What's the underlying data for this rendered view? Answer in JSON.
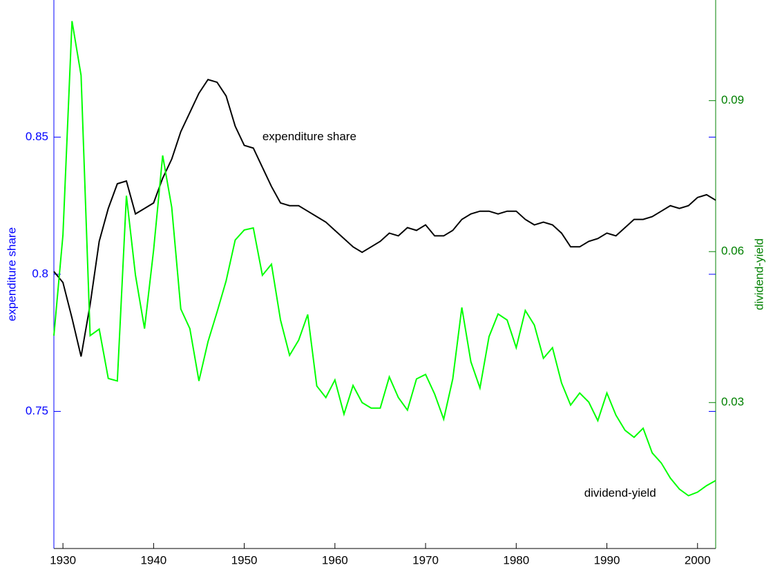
{
  "chart_data": {
    "type": "line",
    "x": [
      1929,
      1930,
      1931,
      1932,
      1933,
      1934,
      1935,
      1936,
      1937,
      1938,
      1939,
      1940,
      1941,
      1942,
      1943,
      1944,
      1945,
      1946,
      1947,
      1948,
      1949,
      1950,
      1951,
      1952,
      1953,
      1954,
      1955,
      1956,
      1957,
      1958,
      1959,
      1960,
      1961,
      1962,
      1963,
      1964,
      1965,
      1966,
      1967,
      1968,
      1969,
      1970,
      1971,
      1972,
      1973,
      1974,
      1975,
      1976,
      1977,
      1978,
      1979,
      1980,
      1981,
      1982,
      1983,
      1984,
      1985,
      1986,
      1987,
      1988,
      1989,
      1990,
      1991,
      1992,
      1993,
      1994,
      1995,
      1996,
      1997,
      1998,
      1999,
      2000,
      2001,
      2002
    ],
    "series": [
      {
        "name": "expenditure share",
        "color": "#000000",
        "axis": "y",
        "values": [
          0.801,
          0.797,
          0.784,
          0.77,
          0.789,
          0.812,
          0.824,
          0.833,
          0.834,
          0.822,
          0.824,
          0.826,
          0.835,
          0.842,
          0.852,
          0.859,
          0.866,
          0.871,
          0.87,
          0.865,
          0.854,
          0.847,
          0.846,
          0.839,
          0.832,
          0.826,
          0.825,
          0.825,
          0.823,
          0.821,
          0.819,
          0.816,
          0.813,
          0.81,
          0.808,
          0.81,
          0.812,
          0.815,
          0.814,
          0.817,
          0.816,
          0.818,
          0.814,
          0.814,
          0.816,
          0.82,
          0.822,
          0.823,
          0.823,
          0.822,
          0.823,
          0.823,
          0.82,
          0.818,
          0.819,
          0.818,
          0.815,
          0.81,
          0.81,
          0.812,
          0.813,
          0.815,
          0.814,
          0.817,
          0.82,
          0.82,
          0.821,
          0.823,
          0.825,
          0.824,
          0.825,
          0.828,
          0.829,
          0.827
        ]
      },
      {
        "name": "dividend-yield",
        "color": "#00ff00",
        "axis": "y2",
        "values": [
          0.0433,
          0.0633,
          0.1058,
          0.095,
          0.0433,
          0.0446,
          0.0348,
          0.0343,
          0.0711,
          0.0553,
          0.0447,
          0.0603,
          0.0791,
          0.0688,
          0.0486,
          0.0447,
          0.0343,
          0.0421,
          0.048,
          0.0542,
          0.0623,
          0.0643,
          0.0647,
          0.0553,
          0.0575,
          0.0464,
          0.0394,
          0.0424,
          0.0475,
          0.0333,
          0.031,
          0.0345,
          0.0277,
          0.0334,
          0.03,
          0.0289,
          0.0289,
          0.0351,
          0.031,
          0.0285,
          0.0347,
          0.0356,
          0.0317,
          0.0267,
          0.0347,
          0.0489,
          0.0381,
          0.0329,
          0.0431,
          0.0476,
          0.0464,
          0.0409,
          0.0483,
          0.0454,
          0.0388,
          0.0409,
          0.0339,
          0.0295,
          0.0319,
          0.0301,
          0.0264,
          0.0319,
          0.0275,
          0.0245,
          0.0231,
          0.0249,
          0.02,
          0.018,
          0.015,
          0.0128,
          0.0115,
          0.0122,
          0.0135,
          0.0145
        ]
      }
    ],
    "xlim": [
      1929,
      2002
    ],
    "xticks": [
      1930,
      1940,
      1950,
      1960,
      1970,
      1980,
      1990,
      2000
    ],
    "ylim": [
      0.7,
      0.9
    ],
    "yticks": [
      0.75,
      0.8,
      0.85
    ],
    "y2lim": [
      0.001,
      0.11
    ],
    "y2ticks": [
      0.03,
      0.06,
      0.09
    ],
    "ylabel": "expenditure share",
    "y2label": "dividend-yield",
    "ylabel_color": "#0000ff",
    "y2label_color": "#008000",
    "annotations": [
      {
        "text": "expenditure share",
        "x": 1952,
        "y": 0.85
      },
      {
        "text": "dividend-yield",
        "x": 1987.5,
        "y": 0.72
      }
    ]
  }
}
